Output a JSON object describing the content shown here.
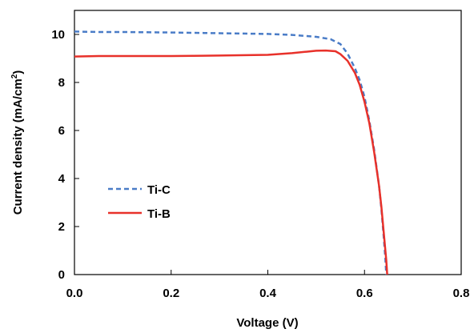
{
  "chart_data": {
    "type": "line",
    "xlabel": "Voltage (V)",
    "ylabel_main": "Current density (mA/cm",
    "ylabel_sup": "2",
    "ylabel_tail": ")",
    "xlim": [
      0,
      0.8
    ],
    "ylim": [
      0,
      11
    ],
    "xticks": [
      0.0,
      0.2,
      0.4,
      0.6,
      0.8
    ],
    "xtick_labels": [
      "0.0",
      "0.2",
      "0.4",
      "0.6",
      "0.8"
    ],
    "yticks": [
      0,
      2,
      4,
      6,
      8,
      10
    ],
    "ytick_labels": [
      "0",
      "2",
      "4",
      "6",
      "8",
      "10"
    ],
    "grid": false,
    "legend_position": "left",
    "series": [
      {
        "name": "Ti-C",
        "color": "#4a7cc7",
        "style": "dashed",
        "x": [
          0.0,
          0.05,
          0.1,
          0.2,
          0.3,
          0.4,
          0.45,
          0.5,
          0.53,
          0.55,
          0.565,
          0.58,
          0.59,
          0.6,
          0.61,
          0.62,
          0.63,
          0.635,
          0.64,
          0.643,
          0.645
        ],
        "y": [
          10.12,
          10.1,
          10.1,
          10.08,
          10.05,
          10.02,
          9.98,
          9.9,
          9.8,
          9.6,
          9.2,
          8.6,
          8.1,
          7.4,
          6.4,
          5.2,
          3.7,
          2.7,
          1.5,
          0.7,
          0.0
        ]
      },
      {
        "name": "Ti-B",
        "color": "#e8312a",
        "style": "solid",
        "x": [
          0.0,
          0.05,
          0.1,
          0.2,
          0.3,
          0.4,
          0.45,
          0.48,
          0.5,
          0.52,
          0.54,
          0.55,
          0.565,
          0.58,
          0.59,
          0.6,
          0.61,
          0.62,
          0.63,
          0.635,
          0.64,
          0.645,
          0.647
        ],
        "y": [
          9.08,
          9.1,
          9.1,
          9.1,
          9.12,
          9.15,
          9.22,
          9.28,
          9.32,
          9.33,
          9.3,
          9.18,
          8.9,
          8.4,
          7.9,
          7.2,
          6.3,
          5.1,
          3.7,
          2.8,
          1.7,
          0.6,
          0.0
        ]
      }
    ]
  }
}
